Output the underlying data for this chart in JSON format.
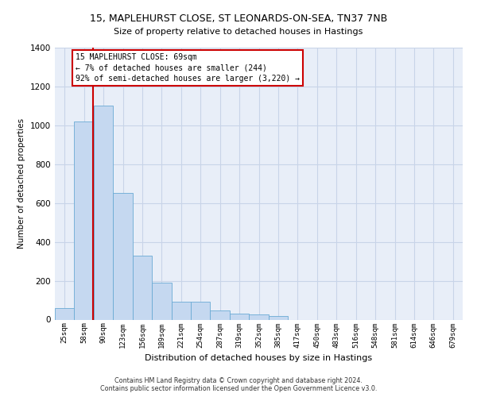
{
  "title_line1": "15, MAPLEHURST CLOSE, ST LEONARDS-ON-SEA, TN37 7NB",
  "title_line2": "Size of property relative to detached houses in Hastings",
  "xlabel": "Distribution of detached houses by size in Hastings",
  "ylabel": "Number of detached properties",
  "bin_labels": [
    "25sqm",
    "58sqm",
    "90sqm",
    "123sqm",
    "156sqm",
    "189sqm",
    "221sqm",
    "254sqm",
    "287sqm",
    "319sqm",
    "352sqm",
    "385sqm",
    "417sqm",
    "450sqm",
    "483sqm",
    "516sqm",
    "548sqm",
    "581sqm",
    "614sqm",
    "646sqm",
    "679sqm"
  ],
  "bar_heights": [
    60,
    1020,
    1100,
    650,
    330,
    190,
    90,
    90,
    45,
    30,
    25,
    20,
    0,
    0,
    0,
    0,
    0,
    0,
    0,
    0,
    0
  ],
  "bar_color": "#c5d8f0",
  "bar_edge_color": "#6aaad4",
  "grid_color": "#c8d4e8",
  "background_color": "#e8eef8",
  "vline_color": "#cc0000",
  "vline_position": 1.47,
  "annotation_text": "15 MAPLEHURST CLOSE: 69sqm\n← 7% of detached houses are smaller (244)\n92% of semi-detached houses are larger (3,220) →",
  "annotation_box_color": "#cc0000",
  "ylim": [
    0,
    1400
  ],
  "yticks": [
    0,
    200,
    400,
    600,
    800,
    1000,
    1200,
    1400
  ],
  "footer_line1": "Contains HM Land Registry data © Crown copyright and database right 2024.",
  "footer_line2": "Contains public sector information licensed under the Open Government Licence v3.0."
}
